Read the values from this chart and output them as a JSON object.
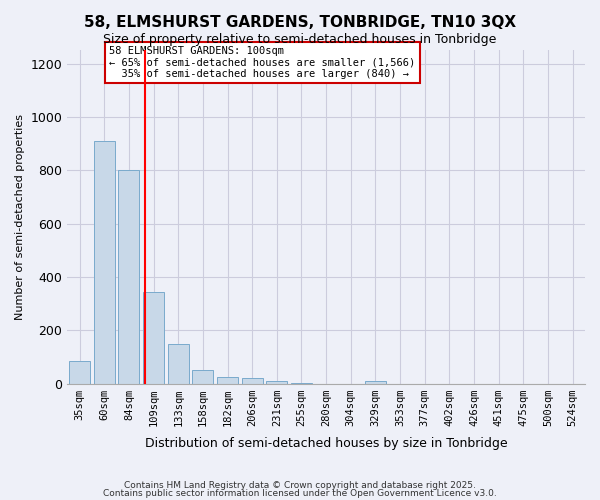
{
  "title1": "58, ELMSHURST GARDENS, TONBRIDGE, TN10 3QX",
  "title2": "Size of property relative to semi-detached houses in Tonbridge",
  "xlabel": "Distribution of semi-detached houses by size in Tonbridge",
  "ylabel": "Number of semi-detached properties",
  "categories": [
    "35sqm",
    "60sqm",
    "84sqm",
    "109sqm",
    "133sqm",
    "158sqm",
    "182sqm",
    "206sqm",
    "231sqm",
    "255sqm",
    "280sqm",
    "304sqm",
    "329sqm",
    "353sqm",
    "377sqm",
    "402sqm",
    "426sqm",
    "451sqm",
    "475sqm",
    "500sqm",
    "524sqm"
  ],
  "values": [
    85,
    910,
    800,
    345,
    150,
    52,
    25,
    22,
    8,
    2,
    0,
    0,
    10,
    0,
    0,
    0,
    0,
    0,
    0,
    0,
    0
  ],
  "bar_color": "#c8d8e8",
  "bar_edge_color": "#7aaacc",
  "grid_color": "#ccccdd",
  "background_color": "#eef0f8",
  "red_line_x": 3,
  "annotation_text": "58 ELMSHURST GARDENS: 100sqm\n← 65% of semi-detached houses are smaller (1,566)\n  35% of semi-detached houses are larger (840) →",
  "annotation_box_color": "#ffffff",
  "annotation_box_edge": "#cc0000",
  "ylim": [
    0,
    1250
  ],
  "yticks": [
    0,
    200,
    400,
    600,
    800,
    1000,
    1200
  ],
  "footer1": "Contains HM Land Registry data © Crown copyright and database right 2025.",
  "footer2": "Contains public sector information licensed under the Open Government Licence v3.0."
}
